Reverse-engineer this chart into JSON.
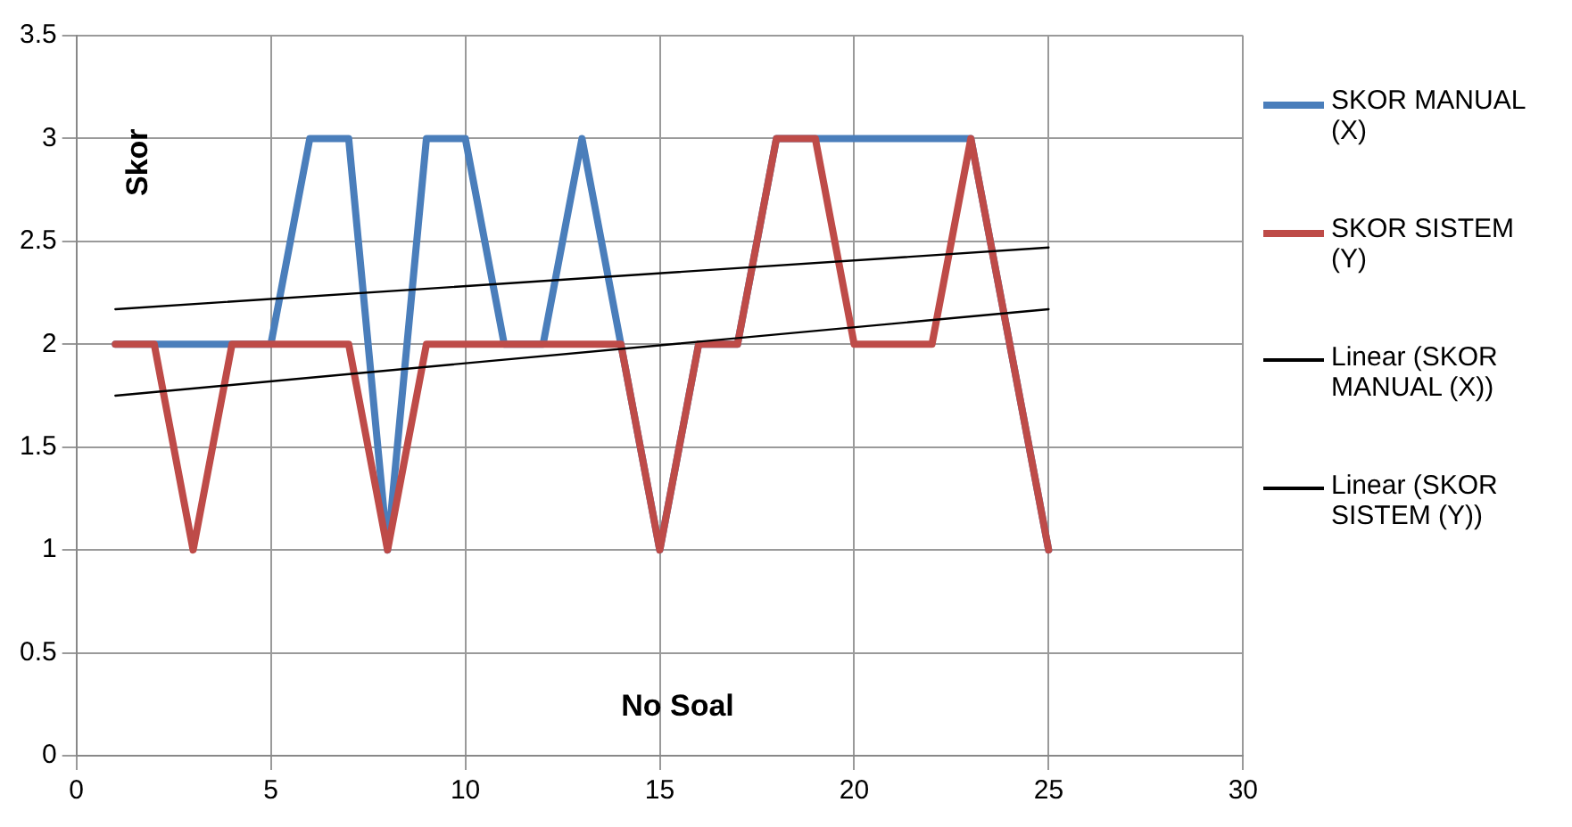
{
  "chart_data": {
    "type": "line",
    "xlabel": "No Soal",
    "ylabel": "Skor",
    "xlim": [
      0,
      30
    ],
    "xticks": [
      0,
      5,
      10,
      15,
      20,
      25,
      30
    ],
    "ylim": [
      0,
      3.5
    ],
    "yticks": [
      0,
      0.5,
      1,
      1.5,
      2,
      2.5,
      3,
      3.5
    ],
    "grid": true,
    "legend": "right",
    "marker": "none",
    "series": [
      {
        "name": "SKOR MANUAL (X)",
        "color": "#4a7ebb",
        "x": [
          1,
          2,
          3,
          4,
          5,
          6,
          7,
          8,
          9,
          10,
          11,
          12,
          13,
          14,
          15,
          16,
          17,
          18,
          19,
          20,
          21,
          22,
          23,
          24,
          25
        ],
        "values": [
          2,
          2,
          2,
          2,
          2,
          3,
          3,
          1,
          3,
          3,
          2,
          2,
          3,
          2,
          1,
          2,
          2,
          3,
          3,
          3,
          3,
          3,
          3,
          2,
          1
        ]
      },
      {
        "name": "SKOR SISTEM (Y)",
        "color": "#be4b48",
        "x": [
          1,
          2,
          3,
          4,
          5,
          6,
          7,
          8,
          9,
          10,
          11,
          12,
          13,
          14,
          15,
          16,
          17,
          18,
          19,
          20,
          21,
          22,
          23,
          24,
          25
        ],
        "values": [
          2,
          2,
          1,
          2,
          2,
          2,
          2,
          1,
          2,
          2,
          2,
          2,
          2,
          2,
          1,
          2,
          2,
          3,
          3,
          2,
          2,
          2,
          3,
          2,
          1
        ]
      },
      {
        "name": "Linear (SKOR MANUAL (X))",
        "type": "line",
        "color": "#000000",
        "x": [
          1,
          25
        ],
        "values": [
          2.17,
          2.47
        ]
      },
      {
        "name": "Linear (SKOR SISTEM (Y))",
        "type": "line",
        "color": "#000000",
        "x": [
          1,
          25
        ],
        "values": [
          1.75,
          2.17
        ]
      }
    ]
  }
}
